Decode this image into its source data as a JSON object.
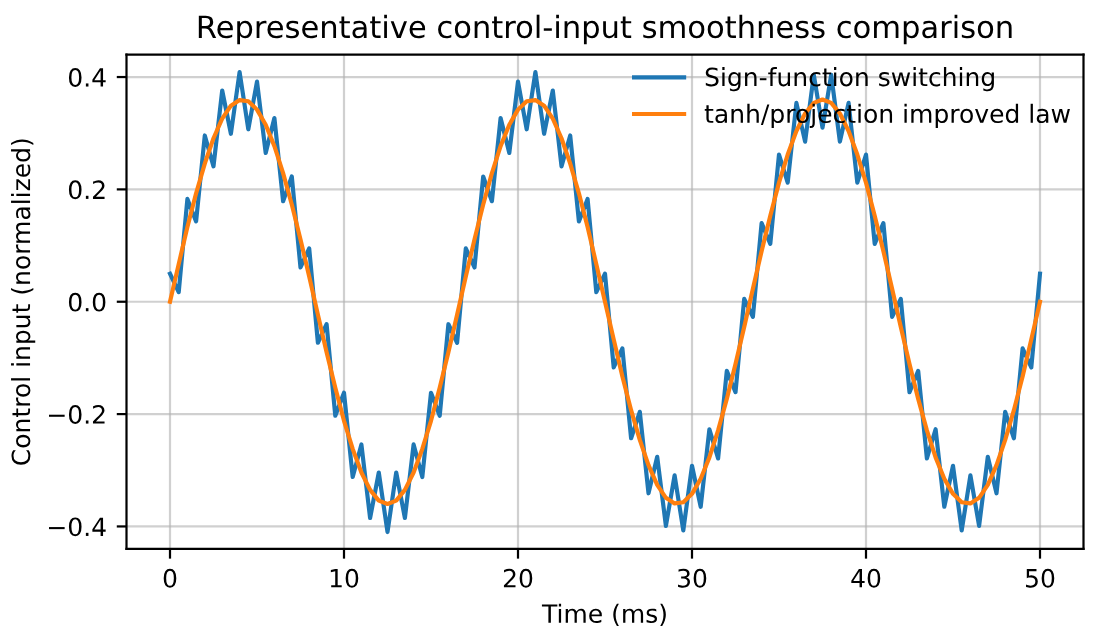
{
  "chart_data": {
    "type": "line",
    "title": "Representative control-input smoothness comparison",
    "xlabel": "Time (ms)",
    "ylabel": "Control input (normalized)",
    "x": [
      0,
      0.5,
      1,
      1.5,
      2,
      2.5,
      3,
      3.5,
      4,
      4.5,
      5,
      5.5,
      6,
      6.5,
      7,
      7.5,
      8,
      8.5,
      9,
      9.5,
      10,
      10.5,
      11,
      11.5,
      12,
      12.5,
      13,
      13.5,
      14,
      14.5,
      15,
      15.5,
      16,
      16.5,
      17,
      17.5,
      18,
      18.5,
      19,
      19.5,
      20,
      20.5,
      21,
      21.5,
      22,
      22.5,
      23,
      23.5,
      24,
      24.5,
      25,
      25.5,
      26,
      26.5,
      27,
      27.5,
      28,
      28.5,
      29,
      29.5,
      30,
      30.5,
      31,
      31.5,
      32,
      32.5,
      33,
      33.5,
      34,
      34.5,
      35,
      35.5,
      36,
      36.5,
      37,
      37.5,
      38,
      38.5,
      39,
      39.5,
      40,
      40.5,
      41,
      41.5,
      42,
      42.5,
      43,
      43.5,
      44,
      44.5,
      45,
      45.5,
      46,
      46.5,
      47,
      47.5,
      48,
      48.5,
      49,
      49.5,
      50
    ],
    "series": [
      {
        "name": "Sign-function switching",
        "color": "#1f77b4",
        "values": [
          0.05,
          0.017,
          0.183,
          0.143,
          0.296,
          0.241,
          0.376,
          0.299,
          0.409,
          0.307,
          0.392,
          0.265,
          0.327,
          0.179,
          0.223,
          0.061,
          0.095,
          -0.073,
          -0.04,
          -0.203,
          -0.162,
          -0.312,
          -0.254,
          -0.385,
          -0.304,
          -0.41,
          -0.304,
          -0.385,
          -0.254,
          -0.312,
          -0.162,
          -0.203,
          -0.04,
          -0.073,
          0.095,
          0.061,
          0.223,
          0.179,
          0.327,
          0.265,
          0.392,
          0.307,
          0.409,
          0.299,
          0.376,
          0.241,
          0.296,
          0.143,
          0.183,
          0.017,
          0.05,
          -0.117,
          -0.083,
          -0.243,
          -0.196,
          -0.341,
          -0.276,
          -0.399,
          -0.309,
          -0.407,
          -0.292,
          -0.365,
          -0.227,
          -0.279,
          -0.123,
          -0.161,
          0.005,
          -0.027,
          0.14,
          0.103,
          0.262,
          0.212,
          0.354,
          0.285,
          0.404,
          0.31,
          0.404,
          0.285,
          0.354,
          0.212,
          0.262,
          0.103,
          0.14,
          -0.027,
          0.005,
          -0.161,
          -0.123,
          -0.279,
          -0.227,
          -0.365,
          -0.292,
          -0.407,
          -0.309,
          -0.399,
          -0.276,
          -0.341,
          -0.196,
          -0.243,
          -0.083,
          -0.117,
          0.05
        ]
      },
      {
        "name": "tanh/projection improved law",
        "color": "#ff7f0e",
        "values": [
          0,
          0.067,
          0.133,
          0.193,
          0.246,
          0.291,
          0.326,
          0.349,
          0.359,
          0.357,
          0.342,
          0.315,
          0.277,
          0.229,
          0.173,
          0.111,
          0.045,
          -0.023,
          -0.09,
          -0.153,
          -0.212,
          -0.262,
          -0.304,
          -0.335,
          -0.354,
          -0.36,
          -0.354,
          -0.335,
          -0.304,
          -0.262,
          -0.212,
          -0.153,
          -0.09,
          -0.023,
          0.045,
          0.111,
          0.173,
          0.229,
          0.277,
          0.315,
          0.342,
          0.357,
          0.359,
          0.349,
          0.326,
          0.291,
          0.246,
          0.193,
          0.133,
          0.067,
          0,
          -0.067,
          -0.133,
          -0.193,
          -0.246,
          -0.291,
          -0.326,
          -0.349,
          -0.359,
          -0.357,
          -0.342,
          -0.315,
          -0.277,
          -0.229,
          -0.173,
          -0.111,
          -0.045,
          0.023,
          0.09,
          0.153,
          0.212,
          0.262,
          0.304,
          0.335,
          0.354,
          0.36,
          0.354,
          0.335,
          0.304,
          0.262,
          0.212,
          0.153,
          0.09,
          0.023,
          -0.045,
          -0.111,
          -0.173,
          -0.229,
          -0.277,
          -0.315,
          -0.342,
          -0.357,
          -0.359,
          -0.349,
          -0.326,
          -0.291,
          -0.246,
          -0.193,
          -0.133,
          -0.067,
          0
        ]
      }
    ],
    "xlim": [
      -2.5,
      52.5
    ],
    "xticks": [
      0,
      10,
      20,
      30,
      40,
      50
    ],
    "ylim": [
      -0.44,
      0.44
    ],
    "yticks": [
      {
        "value": -0.4,
        "label": "−0.4"
      },
      {
        "value": -0.2,
        "label": "−0.2"
      },
      {
        "value": 0,
        "label": "0.0"
      },
      {
        "value": 0.2,
        "label": "0.2"
      },
      {
        "value": 0.4,
        "label": "0.4"
      }
    ],
    "grid": true,
    "legend": "top right",
    "marker": "none",
    "line_style": "solid"
  }
}
